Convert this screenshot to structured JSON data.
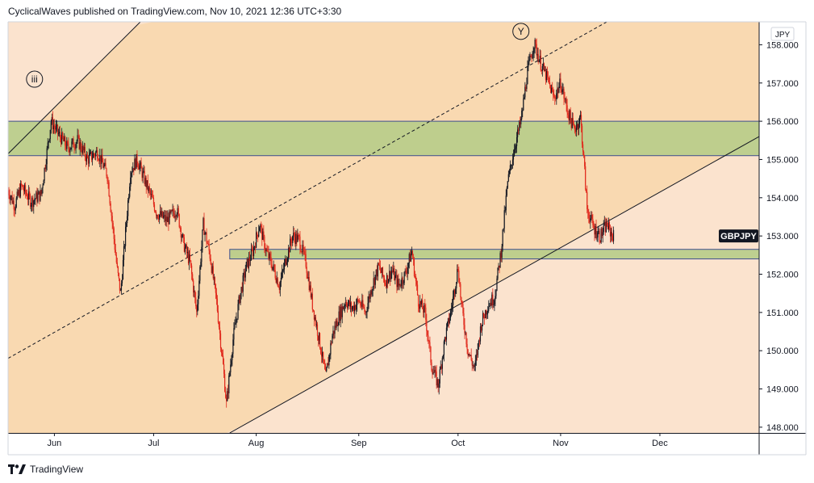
{
  "header": {
    "publish_line": "CyclicalWaves published on TradingView.com, Nov 10, 2021 12:36 UTC+3:30"
  },
  "footer": {
    "brand": "TradingView"
  },
  "colors": {
    "bg_light": "#fbe3ce",
    "bg_dark": "#f9d9b1",
    "zone_fill": "#b7cc8a",
    "zone_border": "#3f4e8e",
    "candle_up": "#131722",
    "candle_down": "#e0291c",
    "symbol_badge_bg": "#131722"
  },
  "chart_data": {
    "type": "candlestick",
    "symbol": "GBPJPY",
    "currency": "JPY",
    "x_ticks": [
      "Jun",
      "Jul",
      "Aug",
      "Sep",
      "Oct",
      "Nov",
      "Dec"
    ],
    "y_ticks": [
      "148.000",
      "149.000",
      "150.000",
      "151.000",
      "152.000",
      "153.000",
      "154.000",
      "155.000",
      "156.000",
      "157.000",
      "158.000"
    ],
    "ylim": [
      147.85,
      158.6
    ],
    "xlim": [
      "2021-05-18",
      "2021-12-31"
    ],
    "last_price": 153.0,
    "annotations": [
      {
        "label": "iii",
        "date": "2021-05-26",
        "price": 157.1
      },
      {
        "label": "Y",
        "date": "2021-10-20",
        "price": 158.35
      }
    ],
    "zones": [
      {
        "from": "2021-05-18",
        "to": "2021-12-31",
        "low": 155.1,
        "high": 156.0
      },
      {
        "from": "2021-07-24",
        "to": "2021-12-31",
        "low": 152.4,
        "high": 152.65
      }
    ],
    "trendlines": [
      {
        "from": [
          "2021-05-18",
          155.15
        ],
        "to": [
          "2021-06-27",
          158.6
        ],
        "style": "solid"
      },
      {
        "from": [
          "2021-05-18",
          149.8
        ],
        "to": [
          "2021-11-15",
          158.6
        ],
        "style": "dashed"
      },
      {
        "from": [
          "2021-07-24",
          147.85
        ],
        "to": [
          "2021-12-31",
          155.6
        ],
        "style": "solid"
      }
    ],
    "price_path": [
      [
        "2021-05-18",
        154.2
      ],
      [
        "2021-05-20",
        153.8
      ],
      [
        "2021-05-22",
        154.3
      ],
      [
        "2021-05-25",
        153.9
      ],
      [
        "2021-05-28",
        154.1
      ],
      [
        "2021-05-31",
        156.0
      ],
      [
        "2021-06-02",
        155.7
      ],
      [
        "2021-06-05",
        155.3
      ],
      [
        "2021-06-08",
        155.5
      ],
      [
        "2021-06-11",
        155.0
      ],
      [
        "2021-06-14",
        155.2
      ],
      [
        "2021-06-17",
        154.6
      ],
      [
        "2021-06-20",
        152.1
      ],
      [
        "2021-06-21",
        151.5
      ],
      [
        "2021-06-24",
        154.7
      ],
      [
        "2021-06-26",
        155.0
      ],
      [
        "2021-06-29",
        154.3
      ],
      [
        "2021-07-02",
        153.6
      ],
      [
        "2021-07-05",
        153.4
      ],
      [
        "2021-07-08",
        153.7
      ],
      [
        "2021-07-10",
        152.8
      ],
      [
        "2021-07-12",
        152.3
      ],
      [
        "2021-07-14",
        151.0
      ],
      [
        "2021-07-16",
        153.3
      ],
      [
        "2021-07-18",
        152.5
      ],
      [
        "2021-07-20",
        151.3
      ],
      [
        "2021-07-22",
        149.6
      ],
      [
        "2021-07-23",
        148.6
      ],
      [
        "2021-07-25",
        150.3
      ],
      [
        "2021-07-27",
        151.4
      ],
      [
        "2021-07-29",
        152.2
      ],
      [
        "2021-07-31",
        152.6
      ],
      [
        "2021-08-02",
        153.3
      ],
      [
        "2021-08-04",
        152.6
      ],
      [
        "2021-08-06",
        152.2
      ],
      [
        "2021-08-08",
        151.7
      ],
      [
        "2021-08-10",
        152.4
      ],
      [
        "2021-08-12",
        153.0
      ],
      [
        "2021-08-14",
        152.9
      ],
      [
        "2021-08-16",
        152.3
      ],
      [
        "2021-08-18",
        151.2
      ],
      [
        "2021-08-20",
        150.3
      ],
      [
        "2021-08-22",
        149.3
      ],
      [
        "2021-08-24",
        150.4
      ],
      [
        "2021-08-26",
        150.9
      ],
      [
        "2021-08-28",
        151.3
      ],
      [
        "2021-08-30",
        151.1
      ],
      [
        "2021-09-01",
        151.3
      ],
      [
        "2021-09-03",
        151.0
      ],
      [
        "2021-09-05",
        151.7
      ],
      [
        "2021-09-07",
        152.2
      ],
      [
        "2021-09-09",
        151.8
      ],
      [
        "2021-09-11",
        152.1
      ],
      [
        "2021-09-13",
        151.7
      ],
      [
        "2021-09-15",
        152.0
      ],
      [
        "2021-09-17",
        152.6
      ],
      [
        "2021-09-19",
        151.3
      ],
      [
        "2021-09-21",
        151.0
      ],
      [
        "2021-09-23",
        149.6
      ],
      [
        "2021-09-25",
        149.1
      ],
      [
        "2021-09-27",
        150.3
      ],
      [
        "2021-09-29",
        151.1
      ],
      [
        "2021-10-01",
        152.2
      ],
      [
        "2021-10-02",
        151.2
      ],
      [
        "2021-10-04",
        150.0
      ],
      [
        "2021-10-06",
        149.5
      ],
      [
        "2021-10-08",
        150.7
      ],
      [
        "2021-10-10",
        151.2
      ],
      [
        "2021-10-12",
        151.4
      ],
      [
        "2021-10-14",
        152.6
      ],
      [
        "2021-10-16",
        154.4
      ],
      [
        "2021-10-18",
        155.3
      ],
      [
        "2021-10-20",
        156.0
      ],
      [
        "2021-10-22",
        157.3
      ],
      [
        "2021-10-24",
        158.05
      ],
      [
        "2021-10-26",
        157.5
      ],
      [
        "2021-10-28",
        157.1
      ],
      [
        "2021-10-30",
        156.6
      ],
      [
        "2021-11-01",
        157.0
      ],
      [
        "2021-11-03",
        156.3
      ],
      [
        "2021-11-05",
        155.8
      ],
      [
        "2021-11-06",
        155.9
      ],
      [
        "2021-11-07",
        156.1
      ],
      [
        "2021-11-08",
        155.0
      ],
      [
        "2021-11-09",
        153.7
      ],
      [
        "2021-11-11",
        153.2
      ],
      [
        "2021-11-13",
        153.0
      ],
      [
        "2021-11-15",
        153.3
      ],
      [
        "2021-11-16",
        153.1
      ],
      [
        "2021-11-17",
        153.0
      ]
    ]
  }
}
